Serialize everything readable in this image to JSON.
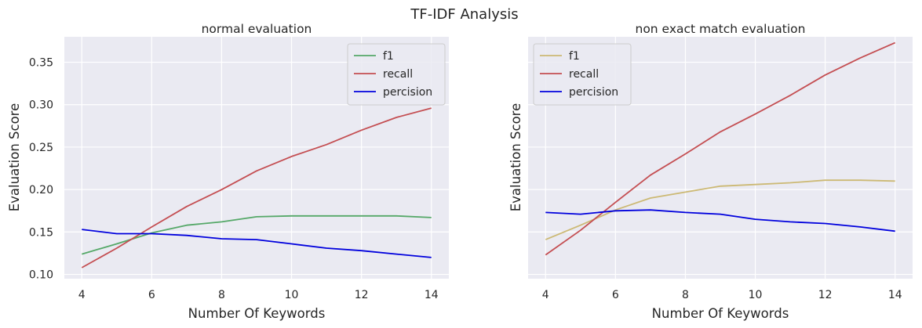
{
  "figure": {
    "title": "TF-IDF Analysis"
  },
  "colors": {
    "background": "#eaeaf2",
    "grid": "#ffffff",
    "f1_left": "#55a868",
    "f1_right": "#ccb974",
    "recall": "#c44e52",
    "percision": "#0000dd"
  },
  "chart_data": [
    {
      "type": "line",
      "title": "normal evaluation",
      "xlabel": "Number Of Keywords",
      "ylabel": "Evaluation Score",
      "x": [
        4,
        5,
        6,
        7,
        8,
        9,
        10,
        11,
        12,
        13,
        14
      ],
      "xlim": [
        3.5,
        14.5
      ],
      "ylim": [
        0.095,
        0.38
      ],
      "xticks": [
        "4",
        "6",
        "8",
        "10",
        "12",
        "14"
      ],
      "yticks": [
        "0.10",
        "0.15",
        "0.20",
        "0.25",
        "0.30",
        "0.35"
      ],
      "legend": "top-right",
      "grid": true,
      "series": [
        {
          "name": "f1",
          "color": "#55a868",
          "values": [
            0.124,
            0.136,
            0.149,
            0.158,
            0.162,
            0.168,
            0.169,
            0.169,
            0.169,
            0.169,
            0.167
          ]
        },
        {
          "name": "recall",
          "color": "#c44e52",
          "values": [
            0.108,
            0.131,
            0.156,
            0.18,
            0.2,
            0.222,
            0.239,
            0.253,
            0.27,
            0.285,
            0.296
          ]
        },
        {
          "name": "percision",
          "color": "#0000dd",
          "values": [
            0.153,
            0.148,
            0.148,
            0.146,
            0.142,
            0.141,
            0.136,
            0.131,
            0.128,
            0.124,
            0.12
          ]
        }
      ]
    },
    {
      "type": "line",
      "title": "non exact match evaluation",
      "xlabel": "Number Of Keywords",
      "ylabel": "Evaluation Score",
      "x": [
        4,
        5,
        6,
        7,
        8,
        9,
        10,
        11,
        12,
        13,
        14
      ],
      "xlim": [
        3.5,
        14.5
      ],
      "ylim": [
        0.095,
        0.38
      ],
      "xticks": [
        "4",
        "6",
        "8",
        "10",
        "12",
        "14"
      ],
      "yticks": [],
      "legend": "top-left",
      "grid": true,
      "series": [
        {
          "name": "f1",
          "color": "#ccb974",
          "values": [
            0.141,
            0.158,
            0.176,
            0.19,
            0.197,
            0.204,
            0.206,
            0.208,
            0.211,
            0.211,
            0.21
          ]
        },
        {
          "name": "recall",
          "color": "#c44e52",
          "values": [
            0.123,
            0.152,
            0.185,
            0.217,
            0.242,
            0.268,
            0.289,
            0.311,
            0.335,
            0.355,
            0.373
          ]
        },
        {
          "name": "percision",
          "color": "#0000dd",
          "values": [
            0.173,
            0.171,
            0.175,
            0.176,
            0.173,
            0.171,
            0.165,
            0.162,
            0.16,
            0.156,
            0.151
          ]
        }
      ]
    }
  ]
}
